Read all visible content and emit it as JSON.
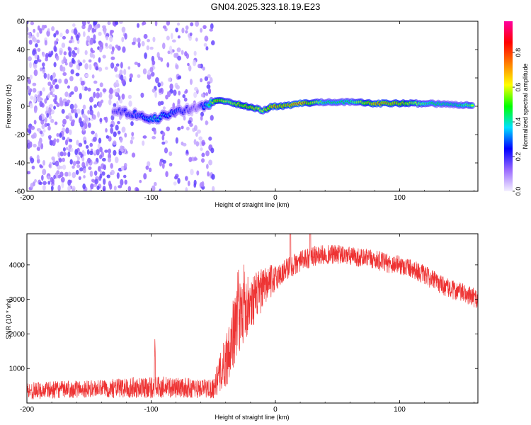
{
  "figure": {
    "title": "GN04.2025.323.18.19.E23"
  },
  "chart_data": [
    {
      "type": "heatmap",
      "title": "GN04.2025.323.18.19.E23",
      "xlabel": "Height of straight line (km)",
      "ylabel": "Frequency (Hz)",
      "xlim": [
        -200,
        163
      ],
      "ylim": [
        -60,
        60
      ],
      "x_ticks": [
        -200,
        -100,
        0,
        100
      ],
      "x_tick_labels": [
        "-200",
        "-100",
        "0",
        "100"
      ],
      "y_ticks": [
        -60,
        -40,
        -20,
        0,
        20,
        40,
        60
      ],
      "y_tick_labels": [
        "-60",
        "-40",
        "-20",
        "0",
        "20",
        "40",
        "60"
      ],
      "grid": false,
      "colorbar": {
        "label": "Normalized spectral amplitude",
        "range": [
          0,
          0.98
        ],
        "ticks": [
          0.0,
          0.2,
          0.4,
          0.6,
          0.8
        ],
        "tick_labels": [
          "0.0",
          "0.2",
          "0.4",
          "0.6",
          "0.8"
        ],
        "colormap": [
          "#f4f0ff",
          "#9b6bff",
          "#0000ff",
          "#00e0ff",
          "#00ff00",
          "#ffff00",
          "#ff7f00",
          "#ff0000",
          "#ff00a0"
        ]
      },
      "noise_region": {
        "x_range": [
          -200,
          -50
        ],
        "freq_range": [
          -60,
          60
        ],
        "typical_amplitude": 0.1
      },
      "signal_ridge": {
        "points": [
          {
            "x": -130,
            "freq": -3,
            "amplitude": 0.2
          },
          {
            "x": -110,
            "freq": -6,
            "amplitude": 0.3
          },
          {
            "x": -97,
            "freq": -9,
            "amplitude": 0.42
          },
          {
            "x": -80,
            "freq": -4,
            "amplitude": 0.3
          },
          {
            "x": -62,
            "freq": -1,
            "amplitude": 0.15
          },
          {
            "x": -47,
            "freq": 4,
            "amplitude": 0.75
          },
          {
            "x": -38,
            "freq": 3,
            "amplitude": 0.6
          },
          {
            "x": -28,
            "freq": 1,
            "amplitude": 0.7
          },
          {
            "x": -18,
            "freq": -1,
            "amplitude": 0.7
          },
          {
            "x": -10,
            "freq": -3,
            "amplitude": 0.6
          },
          {
            "x": -2,
            "freq": 0,
            "amplitude": 0.8
          },
          {
            "x": 6,
            "freq": 0,
            "amplitude": 0.75
          },
          {
            "x": 20,
            "freq": 2,
            "amplitude": 0.85
          },
          {
            "x": 40,
            "freq": 3,
            "amplitude": 0.5
          },
          {
            "x": 60,
            "freq": 3,
            "amplitude": 0.5
          },
          {
            "x": 80,
            "freq": 2,
            "amplitude": 0.8
          },
          {
            "x": 100,
            "freq": 2,
            "amplitude": 0.75
          },
          {
            "x": 125,
            "freq": 2,
            "amplitude": 0.5
          },
          {
            "x": 145,
            "freq": 1,
            "amplitude": 0.45
          },
          {
            "x": 160,
            "freq": 1,
            "amplitude": 0.6
          }
        ]
      }
    },
    {
      "type": "line",
      "xlabel": "Height of straight line (km)",
      "ylabel": "SNR (10 * v/v)",
      "xlim": [
        -200,
        163
      ],
      "ylim": [
        0,
        4900
      ],
      "x_ticks": [
        -200,
        -100,
        0,
        100
      ],
      "x_tick_labels": [
        "-200",
        "-100",
        "0",
        "100"
      ],
      "y_ticks": [
        1000,
        2000,
        3000,
        4000
      ],
      "y_tick_labels": [
        "1000",
        "2000",
        "3000",
        "4000"
      ],
      "grid": false,
      "line_color": "#ee3333",
      "series": [
        {
          "x": [
            -200,
            -180,
            -160,
            -140,
            -120,
            -100,
            -80,
            -60,
            -50,
            -40,
            -35,
            -30,
            -25,
            -20,
            -15,
            -10,
            -5,
            0,
            10,
            20,
            30,
            40,
            50,
            60,
            70,
            80,
            90,
            100,
            110,
            120,
            130,
            140,
            150,
            163
          ],
          "values": [
            350,
            380,
            400,
            420,
            440,
            460,
            450,
            420,
            430,
            1200,
            1900,
            2400,
            2700,
            2900,
            3100,
            3300,
            3500,
            3600,
            3900,
            4100,
            4250,
            4300,
            4300,
            4250,
            4200,
            4150,
            4050,
            4000,
            3900,
            3700,
            3500,
            3300,
            3200,
            3000
          ],
          "spread": [
            250,
            250,
            250,
            250,
            300,
            330,
            300,
            280,
            300,
            800,
            1000,
            1000,
            900,
            800,
            700,
            600,
            500,
            400,
            350,
            300,
            300,
            280,
            280,
            280,
            280,
            280,
            280,
            280,
            280,
            280,
            280,
            280,
            280,
            280
          ]
        }
      ],
      "annotations": {
        "spike_x": [
          -97,
          -30,
          -25,
          12,
          28
        ]
      }
    }
  ]
}
